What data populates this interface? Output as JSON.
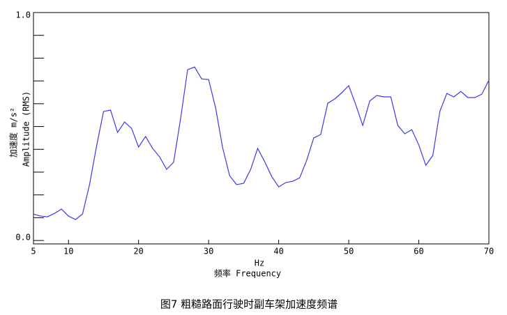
{
  "chart_data": {
    "type": "line",
    "ylabel": "加速度 m/s²",
    "ylabel2": "Amplitude (RMS)",
    "xlabel": "Hz",
    "xlabel2": "频率 Frequency",
    "caption": "图7 粗糙路面行驶时副车架加速度频谱",
    "xlim": [
      5,
      70
    ],
    "xticks": [
      5,
      10,
      20,
      30,
      40,
      50,
      60,
      70
    ],
    "ylim": [
      -0.015,
      1.0
    ],
    "yticks": [
      {
        "value": 0,
        "label": "0.0"
      },
      {
        "value": 1,
        "label": "1.0"
      }
    ],
    "yminorticks": [
      0.1,
      0.2,
      0.3,
      0.4,
      0.5,
      0.6,
      0.7,
      0.8,
      0.9
    ],
    "x": [
      5,
      6,
      7,
      8,
      9,
      10,
      11,
      12,
      13,
      14,
      15,
      16,
      17,
      18,
      19,
      20,
      21,
      22,
      23,
      24,
      25,
      26,
      27,
      28,
      29,
      30,
      31,
      32,
      33,
      34,
      35,
      36,
      37,
      38,
      39,
      40,
      41,
      42,
      43,
      44,
      45,
      46,
      47,
      48,
      49,
      50,
      51,
      52,
      53,
      54,
      55,
      56,
      57,
      58,
      59,
      60,
      61,
      62,
      63,
      64,
      65,
      66,
      67,
      68,
      69,
      70
    ],
    "series": [
      {
        "color": "#3a3ae6",
        "values": [
          0.116,
          0.107,
          0.104,
          0.119,
          0.138,
          0.107,
          0.092,
          0.116,
          0.245,
          0.413,
          0.566,
          0.572,
          0.474,
          0.52,
          0.492,
          0.41,
          0.456,
          0.404,
          0.367,
          0.312,
          0.343,
          0.535,
          0.749,
          0.761,
          0.709,
          0.706,
          0.581,
          0.407,
          0.284,
          0.245,
          0.251,
          0.312,
          0.404,
          0.346,
          0.281,
          0.235,
          0.254,
          0.26,
          0.275,
          0.352,
          0.45,
          0.465,
          0.602,
          0.621,
          0.648,
          0.679,
          0.596,
          0.505,
          0.612,
          0.636,
          0.63,
          0.63,
          0.505,
          0.468,
          0.486,
          0.419,
          0.33,
          0.373,
          0.566,
          0.645,
          0.63,
          0.654,
          0.627,
          0.627,
          0.642,
          0.703
        ]
      }
    ]
  }
}
